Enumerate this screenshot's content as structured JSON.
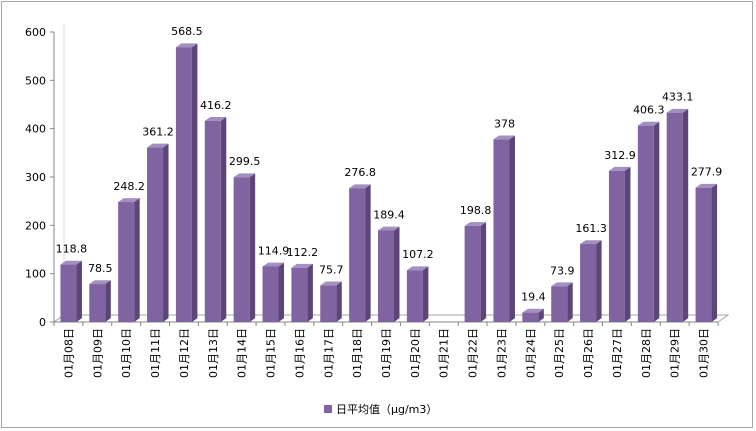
{
  "chart_data": {
    "type": "bar",
    "style": "3d-column",
    "categories": [
      "01月08日",
      "01月09日",
      "01月10日",
      "01月11日",
      "01月12日",
      "01月13日",
      "01月14日",
      "01月15日",
      "01月16日",
      "01月17日",
      "01月18日",
      "01月19日",
      "01月20日",
      "01月21日",
      "01月22日",
      "01月23日",
      "01月24日",
      "01月25日",
      "01月26日",
      "01月27日",
      "01月28日",
      "01月29日",
      "01月30日"
    ],
    "series": [
      {
        "name": "日平均值（μg/m3）",
        "color": "#8064a2",
        "values": [
          118.8,
          78.5,
          248.2,
          361.2,
          568.5,
          416.2,
          299.5,
          114.9,
          112.2,
          75.7,
          276.8,
          189.4,
          107.2,
          null,
          198.8,
          378,
          19.4,
          73.9,
          161.3,
          312.9,
          406.3,
          433.1,
          277.9
        ],
        "labels": [
          "118.8",
          "78.5",
          "248.2",
          "361.2",
          "568.5",
          "416.2",
          "299.5",
          "114.9",
          "112.2",
          "75.7",
          "276.8",
          "189.4",
          "107.2",
          "",
          "198.8",
          "378",
          "19.4",
          "73.9",
          "161.3",
          "312.9",
          "406.3",
          "433.1",
          "277.9"
        ]
      }
    ],
    "ylim": [
      0,
      600
    ],
    "yticks": [
      "0",
      "100",
      "200",
      "300",
      "400",
      "500",
      "600"
    ],
    "grid": false,
    "legend_position": "bottom"
  }
}
